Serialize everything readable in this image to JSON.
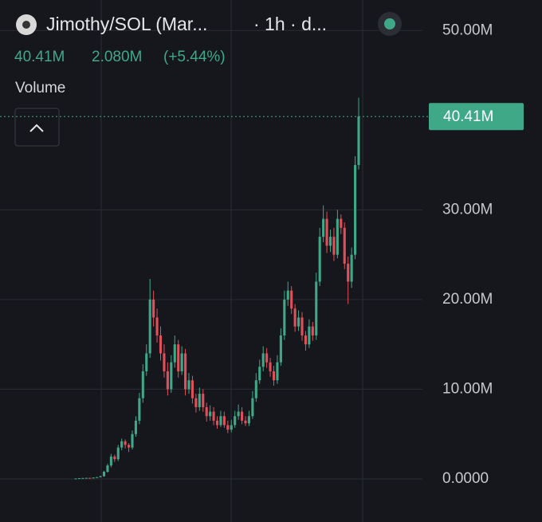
{
  "chart_data": {
    "type": "candlestick",
    "title": "Jimothy/SOL (Mar...",
    "interval": "· 1h · d...",
    "legend_last": "40.41M",
    "legend_change": "2.080M",
    "legend_change_pct": "(+5.44%)",
    "indicator": "Volume",
    "last_price": {
      "value": 40.41,
      "label": "40.41M"
    },
    "up_color": "#3fa987",
    "down_color": "#e0505a",
    "grid": true,
    "ylim": [
      -4.8,
      53.4
    ],
    "yticks": [
      {
        "value": 0,
        "label": "0.0000"
      },
      {
        "value": 10,
        "label": "10.00M"
      },
      {
        "value": 20,
        "label": "20.00M"
      },
      {
        "value": 30,
        "label": "30.00M"
      },
      {
        "value": 50,
        "label": "50.00M"
      }
    ],
    "open": [
      0.04,
      0.05,
      0.08,
      0.1,
      0.12,
      0.1,
      0.15,
      0.2,
      0.3,
      0.8,
      1.5,
      2.5,
      2.2,
      3.5,
      4.2,
      3.8,
      3.5,
      5.0,
      6.5,
      9.0,
      12,
      14,
      20,
      18,
      16,
      14,
      12,
      10,
      13,
      15,
      12,
      14,
      10,
      11,
      9,
      8,
      9.5,
      8,
      7,
      7.5,
      6.5,
      6,
      7,
      6,
      5.5,
      6,
      7,
      7.5,
      6.5,
      6.2,
      7,
      9,
      11,
      12.5,
      14,
      13,
      12,
      11,
      13,
      16,
      20,
      21,
      19,
      17,
      18,
      16,
      15,
      17,
      16,
      22,
      27,
      29,
      26,
      27,
      25,
      29,
      28,
      24,
      22,
      25,
      35
    ],
    "high": [
      0.06,
      0.09,
      0.11,
      0.13,
      0.13,
      0.16,
      0.22,
      0.35,
      0.9,
      1.7,
      2.8,
      2.7,
      3.8,
      4.5,
      4.4,
      4.0,
      5.4,
      7.0,
      9.6,
      12.8,
      15,
      22.3,
      21,
      19,
      17,
      15,
      13,
      13.8,
      16,
      15.5,
      14.8,
      14.5,
      11.8,
      11.5,
      9.5,
      10.2,
      10,
      8.5,
      8.2,
      8,
      7,
      7.6,
      7.5,
      6.5,
      6.6,
      7.6,
      8.3,
      8,
      7,
      7.6,
      9.8,
      11.8,
      13.3,
      14.8,
      14.6,
      13.5,
      12.6,
      13.8,
      16.8,
      21,
      22,
      21.5,
      19.5,
      18.8,
      18.6,
      16.5,
      17.8,
      17.5,
      23,
      28,
      30.5,
      29.8,
      27.8,
      28,
      30,
      29.5,
      28.6,
      24.8,
      25.8,
      36,
      42.5
    ],
    "low": [
      0.03,
      0.04,
      0.07,
      0.09,
      0.09,
      0.09,
      0.14,
      0.18,
      0.25,
      0.7,
      1.3,
      1.9,
      2.0,
      3.2,
      3.4,
      3.0,
      3.3,
      4.7,
      6.1,
      8.5,
      11.5,
      13.5,
      17,
      15.2,
      13.2,
      11.3,
      9.3,
      9.6,
      12.4,
      11.3,
      11.6,
      9.3,
      9.5,
      8.4,
      7.4,
      7.6,
      7.5,
      6.4,
      6.5,
      6,
      5.6,
      5.8,
      5.7,
      5.1,
      5.2,
      5.7,
      6.6,
      6.1,
      5.9,
      5.9,
      6.7,
      8.6,
      10.6,
      12,
      12.4,
      11.4,
      10.4,
      10.6,
      12.6,
      15.5,
      19.3,
      18.4,
      16.4,
      16.5,
      15.4,
      14.3,
      14.6,
      15.4,
      15.5,
      21.5,
      26.4,
      25.2,
      25.3,
      24.3,
      24.6,
      27.3,
      23.4,
      19.5,
      21.3,
      24.5,
      34.5
    ],
    "close": [
      0.05,
      0.08,
      0.1,
      0.12,
      0.1,
      0.15,
      0.2,
      0.3,
      0.8,
      1.5,
      2.5,
      2.2,
      3.5,
      4.2,
      3.8,
      3.5,
      5.0,
      6.5,
      9.0,
      12,
      14,
      20,
      18,
      16,
      14,
      12,
      10,
      13,
      15,
      12,
      14,
      10,
      11,
      9,
      8,
      9.5,
      8,
      7,
      7.5,
      6.5,
      6,
      7,
      6,
      5.5,
      6,
      7,
      7.5,
      6.5,
      6.2,
      7,
      9,
      11,
      12.5,
      14,
      13,
      12,
      11,
      13,
      16,
      20,
      21,
      19,
      17,
      18,
      16,
      15,
      17,
      16,
      22,
      27,
      29,
      26,
      27,
      25,
      29,
      28,
      24,
      22,
      25,
      35,
      40.41
    ]
  }
}
